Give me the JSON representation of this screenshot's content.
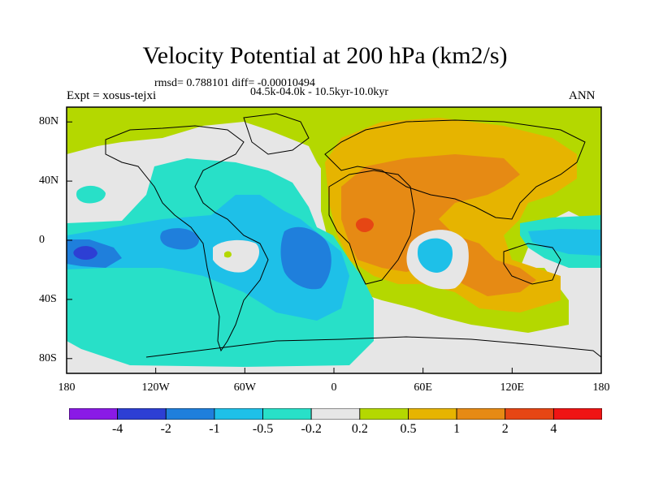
{
  "title": "Velocity Potential at 200 hPa (km2/s)",
  "stats": "rmsd= 0.788101 diff= -0.00010494",
  "period": "04.5k-04.0k - 10.5kyr-10.0kyr",
  "experiment": "Expt = xosus-tejxi",
  "season": "ANN",
  "map": {
    "lon_labels": [
      "180",
      "120W",
      "60W",
      "0",
      "60E",
      "120E",
      "180"
    ],
    "lon_values": [
      -180,
      -120,
      -60,
      0,
      60,
      120,
      180
    ],
    "lat_labels": [
      "80N",
      "40N",
      "0",
      "40S",
      "80S"
    ],
    "lat_values": [
      80,
      40,
      0,
      -40,
      -80
    ]
  },
  "colorbar": {
    "labels": [
      "-4",
      "-2",
      "-1",
      "-0.5",
      "-0.2",
      "0.2",
      "0.5",
      "1",
      "2",
      "4"
    ],
    "colors": [
      "#8a1ae6",
      "#2d3fd4",
      "#1f7fdc",
      "#1ec0e8",
      "#28e0c8",
      "#e6e6e6",
      "#b4d800",
      "#e6b400",
      "#e68a14",
      "#e64614",
      "#f01414"
    ]
  },
  "colors": {
    "neutral": "#e6e6e6",
    "pos_02": "#b4d800",
    "pos_05": "#e6b400",
    "pos_1": "#e68a14",
    "pos_2": "#e64614",
    "neg_02": "#28e0c8",
    "neg_05": "#1ec0e8",
    "neg_1": "#1f7fdc"
  }
}
